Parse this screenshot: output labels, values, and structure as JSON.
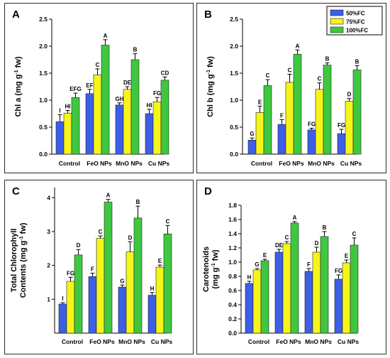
{
  "colors": {
    "50%FC": "#3d5ee8",
    "75%FC": "#f5f519",
    "100%FC": "#3fc83f"
  },
  "legend": [
    "50%FC",
    "75%FC",
    "100%FC"
  ],
  "chart_data": [
    {
      "panel": "A",
      "type": "bar",
      "ylabel_main": "Chl a (mg g",
      "ylabel_sup": "-1",
      "ylabel_end": " fw)",
      "ylim": [
        0,
        2.5
      ],
      "yticks": [
        "0.0",
        "0.5",
        "1.0",
        "1.5",
        "2.0",
        "2.5"
      ],
      "categories": [
        "Control",
        "FeO NPs",
        "MnO NPs",
        "Cu NPs"
      ],
      "series": [
        {
          "name": "50%FC",
          "values": [
            0.6,
            1.12,
            0.91,
            0.75
          ],
          "errors": [
            0.13,
            0.08,
            0.04,
            0.08
          ]
        },
        {
          "name": "75%FC",
          "values": [
            0.76,
            1.47,
            1.2,
            0.97
          ],
          "errors": [
            0.05,
            0.11,
            0.05,
            0.08
          ]
        },
        {
          "name": "100%FC",
          "values": [
            1.05,
            2.02,
            1.75,
            1.37
          ],
          "errors": [
            0.08,
            0.1,
            0.11,
            0.06
          ]
        }
      ],
      "letters": [
        [
          "I",
          "HI",
          "EFG"
        ],
        [
          "EF",
          "C",
          "A"
        ],
        [
          "GH",
          "DE",
          "B"
        ],
        [
          "HI",
          "FG",
          "CD"
        ]
      ]
    },
    {
      "panel": "B",
      "type": "bar",
      "ylabel_main": "Chl b (mg g",
      "ylabel_sup": "-1",
      "ylabel_end": " fw)",
      "ylim": [
        0,
        2.5
      ],
      "yticks": [
        "0.0",
        "0.5",
        "1.0",
        "1.5",
        "2.0",
        "2.5"
      ],
      "categories": [
        "Control",
        "FeO NPs",
        "MnO NPs",
        "Cu NPs"
      ],
      "series": [
        {
          "name": "50%FC",
          "values": [
            0.26,
            0.55,
            0.45,
            0.38
          ],
          "errors": [
            0.04,
            0.09,
            0.03,
            0.08
          ]
        },
        {
          "name": "75%FC",
          "values": [
            0.77,
            1.33,
            1.2,
            0.98
          ],
          "errors": [
            0.12,
            0.15,
            0.12,
            0.05
          ]
        },
        {
          "name": "100%FC",
          "values": [
            1.27,
            1.85,
            1.65,
            1.56
          ],
          "errors": [
            0.11,
            0.08,
            0.04,
            0.08
          ]
        }
      ],
      "letters": [
        [
          "G",
          "E",
          "C"
        ],
        [
          "F",
          "C",
          "A"
        ],
        [
          "FG",
          "C",
          "B"
        ],
        [
          "FG",
          "D",
          "B"
        ]
      ]
    },
    {
      "panel": "C",
      "type": "bar",
      "ylabel_line1": "Total Chlorophyll",
      "ylabel_main": "Contents (mg g",
      "ylabel_sup": "-1",
      "ylabel_end": " fw)",
      "ylim": [
        0,
        4.3
      ],
      "yticks": [
        "1",
        "2",
        "3",
        "4"
      ],
      "ytick_values": [
        1,
        2,
        3,
        4
      ],
      "categories": [
        "Control",
        "FeO NPs",
        "MnO NPs",
        "Cu NPs"
      ],
      "series": [
        {
          "name": "50%FC",
          "values": [
            0.86,
            1.67,
            1.36,
            1.12
          ],
          "errors": [
            0.04,
            0.1,
            0.06,
            0.08
          ]
        },
        {
          "name": "75%FC",
          "values": [
            1.53,
            2.8,
            2.4,
            1.95
          ],
          "errors": [
            0.12,
            0.07,
            0.3,
            0.06
          ]
        },
        {
          "name": "100%FC",
          "values": [
            2.31,
            3.87,
            3.4,
            2.93
          ],
          "errors": [
            0.16,
            0.08,
            0.35,
            0.25
          ]
        }
      ],
      "letters": [
        [
          "I",
          "FG",
          "D"
        ],
        [
          "F",
          "C",
          "A"
        ],
        [
          "G",
          "D",
          "B"
        ],
        [
          "H",
          "E",
          "C"
        ]
      ]
    },
    {
      "panel": "D",
      "type": "bar",
      "ylabel_line1": "Carotenoids",
      "ylabel_main": "(mg g",
      "ylabel_sup": "-1",
      "ylabel_end": " fw)",
      "ylim": [
        0,
        1.8
      ],
      "yticks": [
        "0.0",
        "0.2",
        "0.4",
        "0.6",
        "0.8",
        "1.0",
        "1.2",
        "1.4",
        "1.6",
        "1.8"
      ],
      "categories": [
        "Control",
        "FeO NPs",
        "MnO NPs",
        "Cu NPs"
      ],
      "series": [
        {
          "name": "50%FC",
          "values": [
            0.7,
            1.14,
            0.87,
            0.76
          ],
          "errors": [
            0.03,
            0.04,
            0.04,
            0.06
          ]
        },
        {
          "name": "75%FC",
          "values": [
            0.89,
            1.26,
            1.14,
            0.99
          ],
          "errors": [
            0.02,
            0.03,
            0.07,
            0.04
          ]
        },
        {
          "name": "100%FC",
          "values": [
            1.02,
            1.55,
            1.36,
            1.24
          ],
          "errors": [
            0.02,
            0.02,
            0.07,
            0.1
          ]
        }
      ],
      "letters": [
        [
          "H",
          "G",
          "E"
        ],
        [
          "DE",
          "C",
          "A"
        ],
        [
          "F",
          "D",
          "B"
        ],
        [
          "FG",
          "E",
          "C"
        ]
      ]
    }
  ]
}
